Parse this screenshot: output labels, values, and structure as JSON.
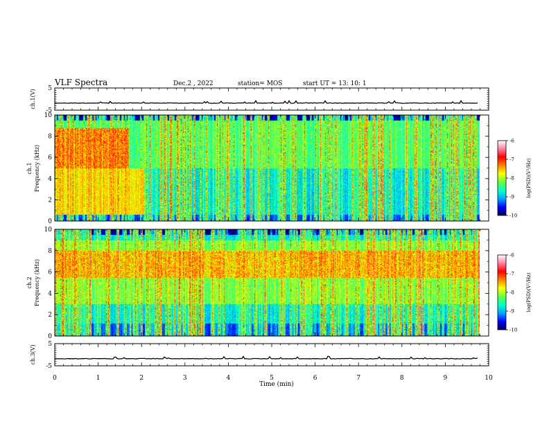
{
  "header": {
    "title": "VLF Spectra",
    "date": "Dec.2 , 2022",
    "station": "station= MOS",
    "start": "start UT =   13: 10: 1"
  },
  "chart_data": [
    {
      "type": "line",
      "name": "ch1-waveform",
      "ylabel": "ch.1(V)",
      "ylim": [
        -5,
        5
      ],
      "yticks": [
        "5",
        "-5"
      ],
      "baseline": -1.8,
      "xlim": [
        0,
        10
      ]
    },
    {
      "type": "heatmap",
      "name": "ch1-spectrogram",
      "ylabel_line1": "ch.1",
      "ylabel_line2": "Frequency (kHz)",
      "ylim": [
        0,
        10
      ],
      "yticks": [
        "0",
        "2",
        "4",
        "6",
        "8",
        "10"
      ],
      "xlim": [
        0,
        9.8
      ],
      "colorbar": {
        "label": "log(PSD)(V²/Hz)",
        "range": [
          -10,
          -6
        ],
        "ticks": [
          "-6",
          "-7",
          "-8",
          "-9",
          "-10"
        ]
      },
      "features": {
        "hiss_band_khz": [
          0.5,
          5
        ],
        "hiss_until_min": 2.05,
        "upper_band_khz": [
          5,
          9.5
        ],
        "cutoff_khz": 9.5,
        "sferics_per_min": 30
      }
    },
    {
      "type": "heatmap",
      "name": "ch2-spectrogram",
      "ylabel_line1": "ch.2",
      "ylabel_line2": "Frequency (kHz)",
      "ylim": [
        0,
        10
      ],
      "yticks": [
        "0",
        "2",
        "4",
        "6",
        "8",
        "10"
      ],
      "xlim": [
        0,
        9.8
      ],
      "colorbar": {
        "label": "log(PSD)(V²/Hz)",
        "range": [
          -10,
          -6
        ],
        "ticks": [
          "-6",
          "-7",
          "-8",
          "-9",
          "-10"
        ]
      },
      "features": {
        "intense_band_khz": [
          5.5,
          8
        ],
        "cutoff_khz": 9.5,
        "sferics_per_min": 30
      }
    },
    {
      "type": "line",
      "name": "ch3-waveform",
      "ylabel": "ch.3(V)",
      "ylim": [
        -5,
        5
      ],
      "yticks": [
        "5",
        "-5"
      ],
      "baseline": -1.8,
      "xlim": [
        0,
        10
      ]
    }
  ],
  "xaxis": {
    "label": "Time (min)",
    "ticks": [
      "0",
      "1",
      "2",
      "3",
      "4",
      "5",
      "6",
      "7",
      "8",
      "9",
      "10"
    ],
    "range": [
      0,
      10
    ]
  },
  "colors": {
    "colormap": [
      "#000060",
      "#0000ff",
      "#00a0ff",
      "#00ffd0",
      "#60ff40",
      "#ffff00",
      "#ff8000",
      "#ff0000",
      "#ff80a0",
      "#ffffff"
    ]
  }
}
